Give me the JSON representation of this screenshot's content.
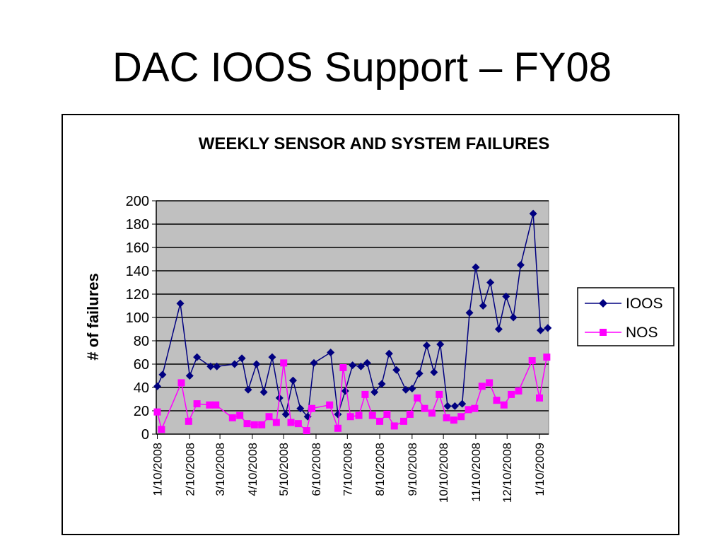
{
  "slide": {
    "title": "DAC IOOS Support – FY08"
  },
  "chart_data": {
    "type": "line",
    "title": "WEEKLY SENSOR AND SYSTEM FAILURES",
    "xlabel": "",
    "ylabel": "# of failures",
    "ylim": [
      0,
      200
    ],
    "yticks": [
      0,
      20,
      40,
      60,
      80,
      100,
      120,
      140,
      160,
      180,
      200
    ],
    "grid": true,
    "legend_position": "right",
    "plot_background": "#c0c0c0",
    "x_tick_labels": [
      "1/10/2008",
      "2/10/2008",
      "3/10/2008",
      "4/10/2008",
      "5/10/2008",
      "6/10/2008",
      "7/10/2008",
      "8/10/2008",
      "9/10/2008",
      "10/10/2008",
      "11/10/2008",
      "12/10/2008",
      "1/10/2009"
    ],
    "series": [
      {
        "name": "IOOS",
        "color": "#000080",
        "marker": "diamond",
        "points": [
          [
            "2008-01-10",
            41
          ],
          [
            "2008-01-15",
            51
          ],
          [
            "2008-02-01",
            112
          ],
          [
            "2008-02-10",
            50
          ],
          [
            "2008-02-17",
            66
          ],
          [
            "2008-03-01",
            58
          ],
          [
            "2008-03-07",
            58
          ],
          [
            "2008-03-24",
            60
          ],
          [
            "2008-03-31",
            65
          ],
          [
            "2008-04-06",
            38
          ],
          [
            "2008-04-14",
            60
          ],
          [
            "2008-04-21",
            36
          ],
          [
            "2008-04-29",
            66
          ],
          [
            "2008-05-06",
            31
          ],
          [
            "2008-05-12",
            17
          ],
          [
            "2008-05-19",
            46
          ],
          [
            "2008-05-26",
            22
          ],
          [
            "2008-06-02",
            15
          ],
          [
            "2008-06-08",
            61
          ],
          [
            "2008-06-24",
            70
          ],
          [
            "2008-07-01",
            17
          ],
          [
            "2008-07-08",
            37
          ],
          [
            "2008-07-15",
            59
          ],
          [
            "2008-07-23",
            58
          ],
          [
            "2008-07-29",
            61
          ],
          [
            "2008-08-05",
            36
          ],
          [
            "2008-08-12",
            43
          ],
          [
            "2008-08-19",
            69
          ],
          [
            "2008-08-26",
            55
          ],
          [
            "2008-09-04",
            38
          ],
          [
            "2008-09-10",
            39
          ],
          [
            "2008-09-17",
            52
          ],
          [
            "2008-09-24",
            76
          ],
          [
            "2008-10-01",
            53
          ],
          [
            "2008-10-07",
            77
          ],
          [
            "2008-10-14",
            24
          ],
          [
            "2008-10-21",
            24
          ],
          [
            "2008-10-28",
            26
          ],
          [
            "2008-11-04",
            104
          ],
          [
            "2008-11-10",
            143
          ],
          [
            "2008-11-17",
            110
          ],
          [
            "2008-11-24",
            130
          ],
          [
            "2008-12-02",
            90
          ],
          [
            "2008-12-09",
            118
          ],
          [
            "2008-12-16",
            100
          ],
          [
            "2008-12-23",
            145
          ],
          [
            "2009-01-04",
            189
          ],
          [
            "2009-01-11",
            89
          ],
          [
            "2009-01-18",
            91
          ]
        ]
      },
      {
        "name": "NOS",
        "color": "#ff00ff",
        "marker": "square",
        "points": [
          [
            "2008-01-10",
            19
          ],
          [
            "2008-01-14",
            4
          ],
          [
            "2008-02-02",
            44
          ],
          [
            "2008-02-09",
            11
          ],
          [
            "2008-02-17",
            26
          ],
          [
            "2008-02-29",
            25
          ],
          [
            "2008-03-06",
            25
          ],
          [
            "2008-03-22",
            14
          ],
          [
            "2008-03-29",
            16
          ],
          [
            "2008-04-05",
            9
          ],
          [
            "2008-04-12",
            8
          ],
          [
            "2008-04-19",
            8
          ],
          [
            "2008-04-26",
            15
          ],
          [
            "2008-05-03",
            10
          ],
          [
            "2008-05-10",
            61
          ],
          [
            "2008-05-17",
            10
          ],
          [
            "2008-05-24",
            9
          ],
          [
            "2008-06-01",
            3
          ],
          [
            "2008-06-06",
            22
          ],
          [
            "2008-06-23",
            25
          ],
          [
            "2008-07-01",
            5
          ],
          [
            "2008-07-06",
            57
          ],
          [
            "2008-07-13",
            15
          ],
          [
            "2008-07-21",
            16
          ],
          [
            "2008-07-27",
            34
          ],
          [
            "2008-08-03",
            16
          ],
          [
            "2008-08-10",
            11
          ],
          [
            "2008-08-17",
            17
          ],
          [
            "2008-08-24",
            7
          ],
          [
            "2008-09-02",
            11
          ],
          [
            "2008-09-08",
            17
          ],
          [
            "2008-09-15",
            31
          ],
          [
            "2008-09-22",
            22
          ],
          [
            "2008-09-29",
            18
          ],
          [
            "2008-10-06",
            34
          ],
          [
            "2008-10-13",
            14
          ],
          [
            "2008-10-20",
            12
          ],
          [
            "2008-10-27",
            15
          ],
          [
            "2008-11-03",
            21
          ],
          [
            "2008-11-09",
            22
          ],
          [
            "2008-11-16",
            41
          ],
          [
            "2008-11-23",
            44
          ],
          [
            "2008-11-30",
            29
          ],
          [
            "2008-12-07",
            25
          ],
          [
            "2008-12-14",
            34
          ],
          [
            "2008-12-21",
            37
          ],
          [
            "2009-01-03",
            63
          ],
          [
            "2009-01-10",
            31
          ],
          [
            "2009-01-17",
            66
          ]
        ]
      }
    ]
  }
}
